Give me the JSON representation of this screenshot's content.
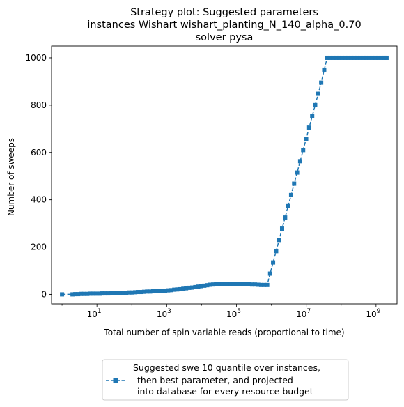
{
  "chart_data": {
    "type": "line",
    "title_lines": [
      "Strategy plot: Suggested parameters",
      "instances Wishart wishart_planting_N_140_alpha_0.70",
      "solver pysa"
    ],
    "xlabel": "Total number of spin variable reads (proportional to time)",
    "ylabel": "Number of sweeps",
    "xscale": "log",
    "xlim": [
      0.5,
      4000000000
    ],
    "ylim": [
      -40,
      1050
    ],
    "x_ticks": [
      {
        "value": 10,
        "base": "10",
        "exp": "1"
      },
      {
        "value": 1000,
        "base": "10",
        "exp": "3"
      },
      {
        "value": 100000,
        "base": "10",
        "exp": "5"
      },
      {
        "value": 10000000,
        "base": "10",
        "exp": "7"
      },
      {
        "value": 1000000000,
        "base": "10",
        "exp": "9"
      }
    ],
    "y_ticks": [
      0,
      200,
      400,
      600,
      800,
      1000
    ],
    "grid": false,
    "legend_position": "bottom-center-outside",
    "color": "#1f77b4",
    "series": [
      {
        "name": "Suggested swe 10 quantile over instances,\n then best parameter, and projected\n into database for every resource budget",
        "legend_lines": [
          "Suggested swe 10 quantile over instances,",
          "then best parameter, and projected",
          "into database for every resource budget"
        ],
        "x": [
          1,
          2,
          2.4,
          2.9,
          3.5,
          4.3,
          5.3,
          6.4,
          7.9,
          9.6,
          12,
          14,
          17,
          21,
          26,
          31,
          38,
          47,
          57,
          69,
          84,
          100,
          125,
          150,
          185,
          225,
          275,
          335,
          410,
          500,
          610,
          740,
          900,
          1100,
          1350,
          1650,
          2000,
          2450,
          3000,
          3600,
          4400,
          5400,
          6600,
          8000,
          9800,
          12000,
          14500,
          17500,
          21500,
          26000,
          32000,
          39000,
          47000,
          58000,
          70000,
          85000,
          105000,
          128000,
          155000,
          190000,
          230000,
          280000,
          340000,
          420000,
          510000,
          620000,
          760000,
          920000,
          1120000,
          1370000,
          1670000,
          2030000,
          2480000,
          3020000,
          3680000,
          4490000,
          5480000,
          6680000,
          8150000,
          9940000,
          12100000,
          14800000,
          18000000,
          22000000,
          26800000,
          32700000,
          39900000,
          48700000,
          59400000,
          72400000,
          88300000,
          107700000,
          131400000,
          160200000,
          195500000,
          238400000,
          290800000,
          354700000,
          432700000,
          527800000,
          643800000,
          785300000,
          957900000,
          1168000000,
          1425000000,
          1738000000,
          2000000000
        ],
        "y": [
          0,
          0,
          1,
          1,
          2,
          2,
          2,
          3,
          3,
          3,
          3,
          4,
          4,
          4,
          5,
          5,
          6,
          6,
          7,
          7,
          8,
          8,
          9,
          10,
          10,
          11,
          12,
          12,
          13,
          14,
          15,
          15,
          16,
          17,
          18,
          20,
          21,
          22,
          24,
          26,
          28,
          29,
          31,
          33,
          35,
          37,
          39,
          41,
          42,
          43,
          44,
          45,
          45,
          45,
          45,
          45,
          45,
          45,
          44,
          44,
          43,
          42,
          42,
          41,
          40,
          40,
          40,
          88,
          135,
          183,
          230,
          278,
          325,
          373,
          420,
          468,
          515,
          563,
          610,
          658,
          705,
          753,
          800,
          848,
          895,
          950,
          1000,
          1000,
          1000,
          1000,
          1000,
          1000,
          1000,
          1000,
          1000,
          1000,
          1000,
          1000,
          1000,
          1000,
          1000,
          1000,
          1000,
          1000,
          1000,
          1000,
          1000
        ]
      }
    ]
  }
}
